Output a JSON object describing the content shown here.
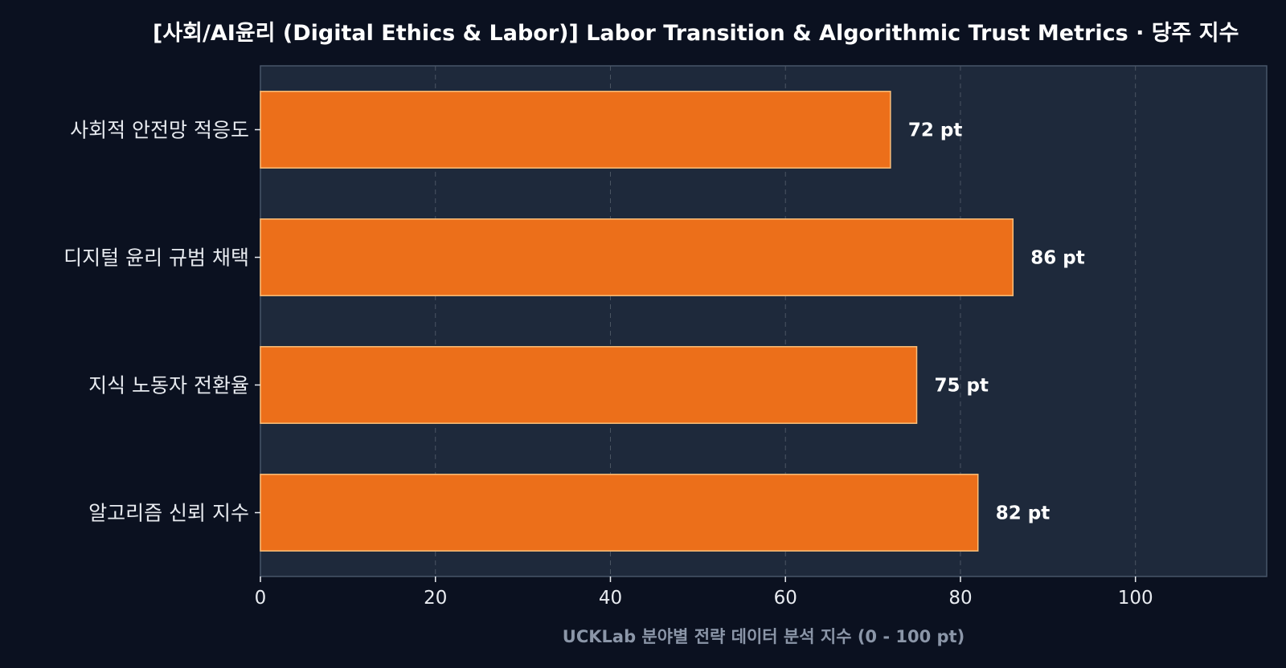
{
  "chart_data": {
    "type": "bar",
    "orientation": "horizontal",
    "title": "[사회/AI윤리 (Digital Ethics & Labor)] Labor Transition & Algorithmic Trust Metrics · 당주 지수",
    "xlabel": "UCKLab 분야별 전략 데이터 분석 지수 (0 - 100 pt)",
    "ylabel": "",
    "categories": [
      "사회적 안전망 적응도",
      "디지털 윤리 규범 채택",
      "지식 노동자 전환율",
      "알고리즘 신뢰 지수"
    ],
    "values": [
      72,
      86,
      75,
      82
    ],
    "value_labels": [
      "72 pt",
      "86 pt",
      "75 pt",
      "82 pt"
    ],
    "xlim": [
      0,
      115
    ],
    "xticks": [
      0,
      20,
      40,
      60,
      80,
      100
    ],
    "xtick_labels": [
      "0",
      "20",
      "40",
      "60",
      "80",
      "100"
    ],
    "grid": true,
    "legend": "none",
    "colors": {
      "background": "#0b1120",
      "plot_background": "#1e293b",
      "bar_fill": "#ec6f1a",
      "bar_edge": "#fbbf7a",
      "grid": "#4b5563",
      "axis_spine": "#475569"
    }
  }
}
